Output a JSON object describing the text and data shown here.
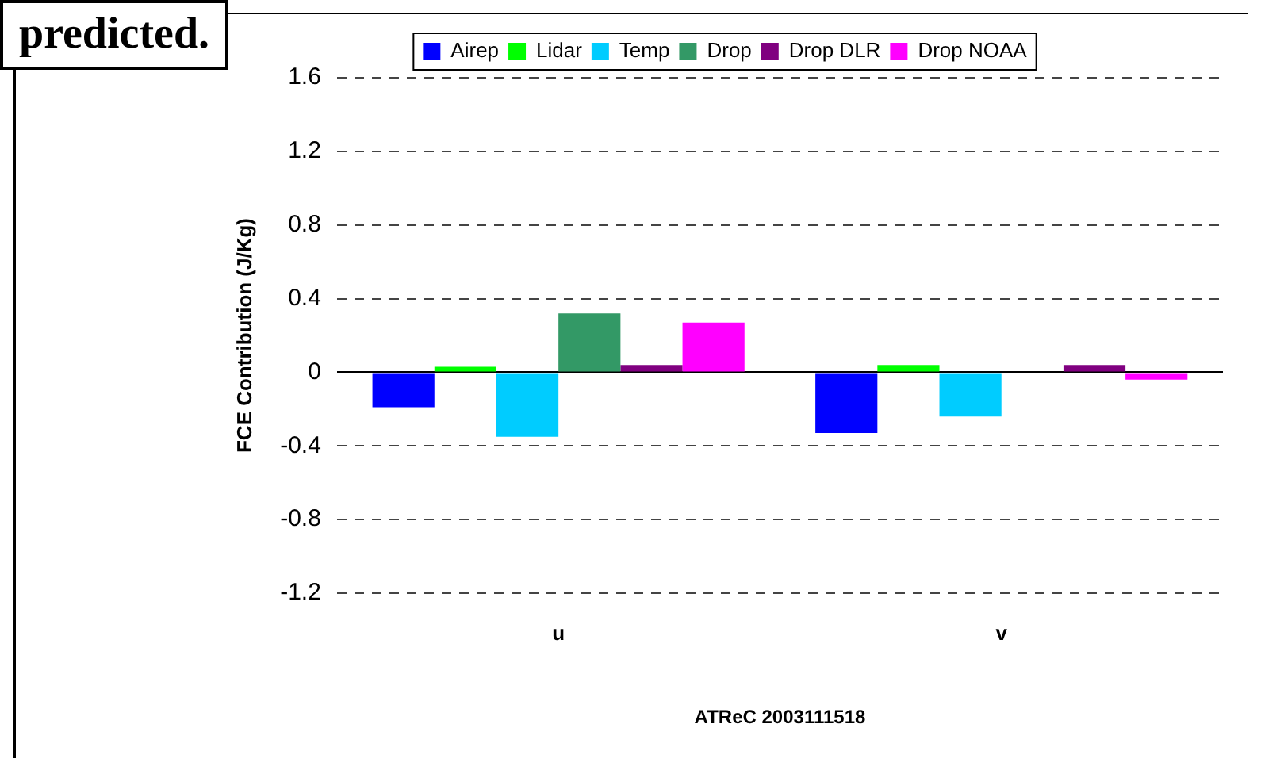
{
  "chart_data": {
    "type": "bar",
    "xlabel": "ATReC 2003111518",
    "ylabel": "FCE Contribution (J/Kg)",
    "categories": [
      "u",
      "v"
    ],
    "series": [
      {
        "name": "Airep",
        "color": "#0000ff",
        "values": [
          -0.19,
          -0.33
        ]
      },
      {
        "name": "Lidar",
        "color": "#00ff00",
        "values": [
          0.03,
          0.04
        ]
      },
      {
        "name": "Temp",
        "color": "#00ccff",
        "values": [
          -0.35,
          -0.24
        ]
      },
      {
        "name": "Drop",
        "color": "#339966",
        "values": [
          0.32,
          null
        ]
      },
      {
        "name": "Drop DLR",
        "color": "#800080",
        "values": [
          0.04,
          0.04
        ]
      },
      {
        "name": "Drop NOAA",
        "color": "#ff00ff",
        "values": [
          0.27,
          -0.04
        ]
      }
    ],
    "ylim": [
      -1.2,
      1.6
    ],
    "yticks": [
      -1.2,
      -0.8,
      -0.4,
      0,
      0.4,
      0.8,
      1.2,
      1.6
    ],
    "grid": "y",
    "legend": "top",
    "annotations": [
      "predicted."
    ]
  }
}
